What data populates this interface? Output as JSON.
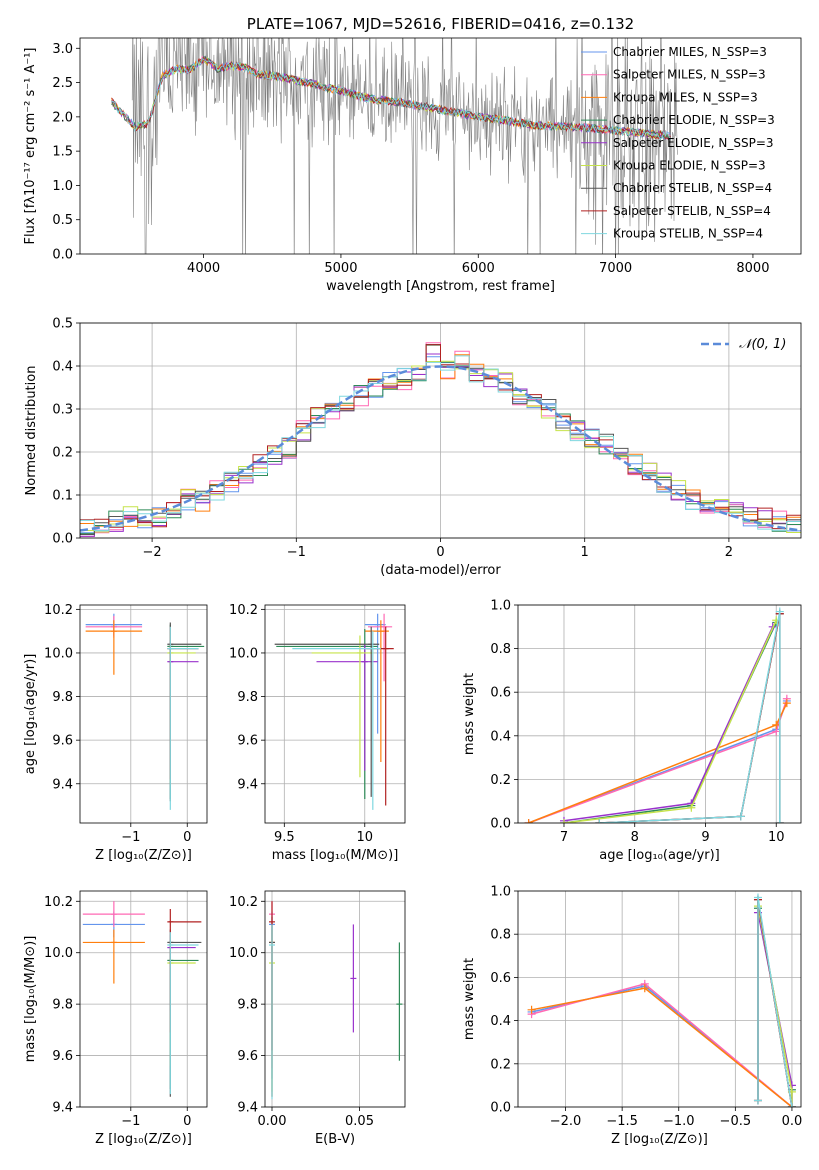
{
  "chart_data": [
    {
      "type": "line",
      "title": "PLATE=1067, MJD=52616, FIBERID=0416, z=0.132",
      "xlabel": "wavelength [Angstrom, rest frame]",
      "ylabel": "Flux [fλ10⁻¹⁷ erg cm⁻² s⁻¹ A⁻¹]",
      "xlim": [
        3100,
        8350
      ],
      "ylim": [
        0,
        3.15
      ],
      "xticks": [
        4000,
        5000,
        6000,
        7000,
        8000
      ],
      "yticks": [
        0.0,
        0.5,
        1.0,
        1.5,
        2.0,
        2.5,
        3.0
      ],
      "grid": false,
      "legend_position": "top-right",
      "legend": [
        {
          "name": "Chabrier MILES, N_SSP=3",
          "color": "#6495ed"
        },
        {
          "name": "Salpeter MILES, N_SSP=3",
          "color": "#ff69b4"
        },
        {
          "name": "Kroupa MILES, N_SSP=3",
          "color": "#ff7f0e"
        },
        {
          "name": "Chabrier ELODIE, N_SSP=3",
          "color": "#2e8b57"
        },
        {
          "name": "Salpeter ELODIE, N_SSP=3",
          "color": "#9932cc"
        },
        {
          "name": "Kroupa ELODIE, N_SSP=3",
          "color": "#c6e34b"
        },
        {
          "name": "Chabrier STELIB, N_SSP=4",
          "color": "#555555"
        },
        {
          "name": "Salpeter STELIB, N_SSP=4",
          "color": "#b22222"
        },
        {
          "name": "Kroupa STELIB, N_SSP=4",
          "color": "#7fd7df"
        }
      ],
      "spectrum_color": "#808080",
      "model_wavelength": [
        3330,
        3500,
        3600,
        3700,
        3800,
        3900,
        4000,
        4100,
        4200,
        4300,
        4400,
        4500,
        4600,
        4700,
        4800,
        4900,
        5000,
        5200,
        5400,
        5600,
        5800,
        6000,
        6200,
        6400,
        6600,
        6800,
        7000,
        7200,
        7400
      ],
      "model_flux": [
        2.22,
        1.85,
        1.9,
        2.6,
        2.7,
        2.68,
        2.85,
        2.7,
        2.75,
        2.72,
        2.62,
        2.6,
        2.57,
        2.52,
        2.48,
        2.42,
        2.38,
        2.27,
        2.22,
        2.15,
        2.08,
        2.0,
        1.95,
        1.88,
        1.86,
        1.84,
        1.8,
        1.76,
        1.72
      ]
    },
    {
      "type": "histogram",
      "xlabel": "(data-model)/error",
      "ylabel": "Normed distribution",
      "xlim": [
        -2.5,
        2.5
      ],
      "ylim": [
        0,
        0.5
      ],
      "xticks": [
        -2,
        -1,
        0,
        1,
        2
      ],
      "yticks": [
        0.0,
        0.1,
        0.2,
        0.3,
        0.4,
        0.5
      ],
      "grid": true,
      "legend_position": "top-right",
      "legend": [
        {
          "name": "𝒩(0, 1)",
          "color": "#5b8bd9"
        }
      ],
      "bin_edges": [
        -2.5,
        -2.4,
        -2.3,
        -2.2,
        -2.1,
        -2.0,
        -1.9,
        -1.8,
        -1.7,
        -1.6,
        -1.5,
        -1.4,
        -1.3,
        -1.2,
        -1.1,
        -1.0,
        -0.9,
        -0.8,
        -0.7,
        -0.6,
        -0.5,
        -0.4,
        -0.3,
        -0.2,
        -0.1,
        0.0,
        0.1,
        0.2,
        0.3,
        0.4,
        0.5,
        0.6,
        0.7,
        0.8,
        0.9,
        1.0,
        1.1,
        1.2,
        1.3,
        1.4,
        1.5,
        1.6,
        1.7,
        1.8,
        1.9,
        2.0,
        2.1,
        2.2,
        2.3,
        2.4,
        2.5
      ],
      "density": [
        0.02,
        0.025,
        0.04,
        0.05,
        0.045,
        0.05,
        0.07,
        0.09,
        0.085,
        0.11,
        0.13,
        0.15,
        0.17,
        0.19,
        0.21,
        0.25,
        0.28,
        0.29,
        0.31,
        0.33,
        0.35,
        0.36,
        0.37,
        0.39,
        0.43,
        0.39,
        0.41,
        0.38,
        0.37,
        0.36,
        0.33,
        0.32,
        0.3,
        0.27,
        0.25,
        0.23,
        0.22,
        0.2,
        0.17,
        0.15,
        0.13,
        0.11,
        0.09,
        0.08,
        0.07,
        0.06,
        0.05,
        0.045,
        0.04,
        0.035
      ],
      "normal_curve": {
        "mean": 0,
        "sigma": 1
      }
    },
    {
      "type": "scatter",
      "panel": "age-vs-Z",
      "xlabel": "Z [log₁₀(Z/Z⊙)]",
      "ylabel": "age  [log₁₀(age/yr)]",
      "xlim": [
        -1.9,
        0.35
      ],
      "ylim": [
        9.22,
        10.22
      ],
      "xticks": [
        -1,
        0
      ],
      "yticks": [
        9.4,
        9.6,
        9.8,
        10.0,
        10.2
      ],
      "grid": true,
      "points": [
        {
          "x": -1.3,
          "y": 10.13,
          "xerr": [
            0.5,
            0.5
          ],
          "yerr": [
            0.05,
            0.05
          ],
          "color": "#6495ed"
        },
        {
          "x": -1.3,
          "y": 10.12,
          "xerr": [
            0.5,
            0.5
          ],
          "yerr": [
            0.05,
            0.05
          ],
          "color": "#ff69b4"
        },
        {
          "x": -1.3,
          "y": 10.1,
          "xerr": [
            0.5,
            0.5
          ],
          "yerr": [
            0.2,
            0.05
          ],
          "color": "#ff7f0e"
        },
        {
          "x": -0.3,
          "y": 10.03,
          "xerr": [
            0.03,
            0.6
          ],
          "yerr": [
            0.7,
            0.1
          ],
          "color": "#2e8b57"
        },
        {
          "x": -0.3,
          "y": 9.96,
          "xerr": [
            0.03,
            0.5
          ],
          "yerr": [
            0.5,
            0.1
          ],
          "color": "#9932cc"
        },
        {
          "x": -0.3,
          "y": 10.0,
          "xerr": [
            0.03,
            0.45
          ],
          "yerr": [
            0.6,
            0.1
          ],
          "color": "#c6e34b"
        },
        {
          "x": -0.3,
          "y": 10.04,
          "xerr": [
            0.03,
            0.55
          ],
          "yerr": [
            0.72,
            0.1
          ],
          "color": "#555555"
        },
        {
          "x": -0.3,
          "y": 10.02,
          "xerr": [
            0.03,
            0.5
          ],
          "yerr": [
            0.6,
            0.1
          ],
          "color": "#b22222"
        },
        {
          "x": -0.3,
          "y": 10.02,
          "xerr": [
            0.03,
            0.5
          ],
          "yerr": [
            0.74,
            0.1
          ],
          "color": "#7fd7df"
        }
      ]
    },
    {
      "type": "scatter",
      "panel": "age-vs-mass",
      "xlabel": "mass [log₁₀(M/M⊙)]",
      "ylabel": "",
      "xlim": [
        9.38,
        10.25
      ],
      "ylim": [
        9.22,
        10.22
      ],
      "xticks": [
        9.5,
        10.0
      ],
      "yticks": [
        9.4,
        9.6,
        9.8,
        10.0,
        10.2
      ],
      "grid": true,
      "points": [
        {
          "x": 10.08,
          "y": 10.13,
          "xerr": [
            0.08,
            0.05
          ],
          "yerr": [
            0.5,
            0.05
          ],
          "color": "#6495ed"
        },
        {
          "x": 10.12,
          "y": 10.12,
          "xerr": [
            0.1,
            0.05
          ],
          "yerr": [
            0.25,
            0.06
          ],
          "color": "#ff69b4"
        },
        {
          "x": 10.1,
          "y": 10.1,
          "xerr": [
            0.1,
            0.05
          ],
          "yerr": [
            0.6,
            0.05
          ],
          "color": "#ff7f0e"
        },
        {
          "x": 10.0,
          "y": 10.03,
          "xerr": [
            0.55,
            0.08
          ],
          "yerr": [
            0.7,
            0.08
          ],
          "color": "#2e8b57"
        },
        {
          "x": 10.0,
          "y": 9.96,
          "xerr": [
            0.3,
            0.08
          ],
          "yerr": [
            0.5,
            0.08
          ],
          "color": "#9932cc"
        },
        {
          "x": 9.97,
          "y": 10.0,
          "xerr": [
            0.3,
            0.08
          ],
          "yerr": [
            0.57,
            0.08
          ],
          "color": "#c6e34b"
        },
        {
          "x": 10.04,
          "y": 10.04,
          "xerr": [
            0.6,
            0.05
          ],
          "yerr": [
            0.7,
            0.08
          ],
          "color": "#555555"
        },
        {
          "x": 10.13,
          "y": 10.02,
          "xerr": [
            0.12,
            0.05
          ],
          "yerr": [
            0.72,
            0.1
          ],
          "color": "#b22222"
        },
        {
          "x": 10.05,
          "y": 10.02,
          "xerr": [
            0.5,
            0.05
          ],
          "yerr": [
            0.74,
            0.08
          ],
          "color": "#7fd7df"
        }
      ]
    },
    {
      "type": "line",
      "panel": "mass-weight-vs-age",
      "xlabel": "age  [log₁₀(age/yr)]",
      "ylabel": "mass weight",
      "xlim": [
        6.35,
        10.35
      ],
      "ylim": [
        0,
        1
      ],
      "xticks": [
        7,
        8,
        9,
        10
      ],
      "yticks": [
        0.0,
        0.2,
        0.4,
        0.6,
        0.8,
        1.0
      ],
      "grid": true,
      "series": [
        {
          "color": "#6495ed",
          "x": [
            6.5,
            10.0,
            10.15
          ],
          "y": [
            0.0,
            0.43,
            0.56
          ]
        },
        {
          "color": "#ff69b4",
          "x": [
            6.5,
            10.0,
            10.15
          ],
          "y": [
            0.0,
            0.42,
            0.57
          ]
        },
        {
          "color": "#ff7f0e",
          "x": [
            6.5,
            10.0,
            10.15
          ],
          "y": [
            0.0,
            0.45,
            0.55
          ]
        },
        {
          "color": "#2e8b57",
          "x": [
            7.0,
            8.8,
            10.0
          ],
          "y": [
            0.0,
            0.08,
            0.92
          ]
        },
        {
          "color": "#9932cc",
          "x": [
            7.0,
            8.8,
            9.95
          ],
          "y": [
            0.01,
            0.09,
            0.9
          ]
        },
        {
          "color": "#c6e34b",
          "x": [
            7.0,
            8.8,
            10.0
          ],
          "y": [
            0.0,
            0.07,
            0.93
          ]
        },
        {
          "color": "#555555",
          "x": [
            7.5,
            9.5,
            10.05,
            10.05
          ],
          "y": [
            0.0,
            0.03,
            0.96,
            0.0
          ]
        },
        {
          "color": "#b22222",
          "x": [
            7.5,
            9.5,
            10.05,
            10.05
          ],
          "y": [
            0.0,
            0.03,
            0.96,
            0.0
          ]
        },
        {
          "color": "#7fd7df",
          "x": [
            7.5,
            9.5,
            10.05,
            10.05
          ],
          "y": [
            0.0,
            0.03,
            0.97,
            0.0
          ]
        }
      ]
    },
    {
      "type": "scatter",
      "panel": "mass-vs-Z",
      "xlabel": "Z [log₁₀(Z/Z⊙)]",
      "ylabel": "mass [log₁₀(M/M⊙)]",
      "xlim": [
        -1.9,
        0.35
      ],
      "ylim": [
        9.4,
        10.24
      ],
      "xticks": [
        -1,
        0
      ],
      "yticks": [
        9.4,
        9.6,
        9.8,
        10.0,
        10.2
      ],
      "grid": true,
      "points": [
        {
          "x": -1.3,
          "y": 10.11,
          "xerr": [
            0.55,
            0.55
          ],
          "yerr": [
            0.05,
            0.05
          ],
          "color": "#6495ed"
        },
        {
          "x": -1.3,
          "y": 10.15,
          "xerr": [
            0.55,
            0.55
          ],
          "yerr": [
            0.05,
            0.05
          ],
          "color": "#ff69b4"
        },
        {
          "x": -1.3,
          "y": 10.04,
          "xerr": [
            0.55,
            0.55
          ],
          "yerr": [
            0.16,
            0.05
          ],
          "color": "#ff7f0e"
        },
        {
          "x": -0.3,
          "y": 9.97,
          "xerr": [
            0.03,
            0.5
          ],
          "yerr": [
            0.5,
            0.08
          ],
          "color": "#2e8b57"
        },
        {
          "x": -0.3,
          "y": 10.02,
          "xerr": [
            0.03,
            0.45
          ],
          "yerr": [
            0.25,
            0.05
          ],
          "color": "#9932cc"
        },
        {
          "x": -0.3,
          "y": 9.96,
          "xerr": [
            0.03,
            0.45
          ],
          "yerr": [
            0.4,
            0.05
          ],
          "color": "#c6e34b"
        },
        {
          "x": -0.3,
          "y": 10.04,
          "xerr": [
            0.03,
            0.55
          ],
          "yerr": [
            0.6,
            0.05
          ],
          "color": "#555555"
        },
        {
          "x": -0.3,
          "y": 10.12,
          "xerr": [
            0.03,
            0.55
          ],
          "yerr": [
            0.43,
            0.05
          ],
          "color": "#b22222"
        },
        {
          "x": -0.3,
          "y": 10.03,
          "xerr": [
            0.03,
            0.5
          ],
          "yerr": [
            0.58,
            0.05
          ],
          "color": "#7fd7df"
        }
      ]
    },
    {
      "type": "scatter",
      "panel": "mass-vs-EBV",
      "xlabel": "E(B-V)",
      "ylabel": "",
      "xlim": [
        -0.004,
        0.076
      ],
      "ylim": [
        9.4,
        10.24
      ],
      "xticks": [
        0.0,
        0.05
      ],
      "yticks": [
        9.4,
        9.6,
        9.8,
        10.0,
        10.2
      ],
      "grid": true,
      "points": [
        {
          "x": 0.0,
          "y": 10.11,
          "yerr": [
            0.6,
            0.05
          ],
          "color": "#6495ed"
        },
        {
          "x": 0.0,
          "y": 10.15,
          "yerr": [
            0.6,
            0.05
          ],
          "color": "#ff69b4"
        },
        {
          "x": 0.0,
          "y": 10.04,
          "yerr": [
            0.6,
            0.05
          ],
          "color": "#ff7f0e"
        },
        {
          "x": 0.0728,
          "y": 9.8,
          "yerr": [
            0.22,
            0.24
          ],
          "color": "#2e8b57"
        },
        {
          "x": 0.0465,
          "y": 9.9,
          "yerr": [
            0.21,
            0.21
          ],
          "color": "#9932cc"
        },
        {
          "x": 0.0,
          "y": 9.96,
          "yerr": [
            0.5,
            0.15
          ],
          "color": "#c6e34b"
        },
        {
          "x": 0.0,
          "y": 10.04,
          "yerr": [
            0.6,
            0.1
          ],
          "color": "#555555"
        },
        {
          "x": 0.0,
          "y": 10.12,
          "yerr": [
            0.5,
            0.08
          ],
          "color": "#b22222"
        },
        {
          "x": 0.0,
          "y": 10.03,
          "yerr": [
            0.6,
            0.08
          ],
          "color": "#7fd7df"
        }
      ]
    },
    {
      "type": "line",
      "panel": "mass-weight-vs-Z",
      "xlabel": "Z [log₁₀(Z/Z⊙)]",
      "ylabel": "mass weight",
      "xlim": [
        -2.42,
        0.08
      ],
      "ylim": [
        0,
        1
      ],
      "xticks": [
        -2.0,
        -1.5,
        -1.0,
        -0.5,
        0.0
      ],
      "yticks": [
        0.0,
        0.2,
        0.4,
        0.6,
        0.8,
        1.0
      ],
      "grid": true,
      "series": [
        {
          "color": "#6495ed",
          "x": [
            -2.3,
            -1.3,
            0.0
          ],
          "y": [
            0.44,
            0.56,
            0.0
          ]
        },
        {
          "color": "#ff69b4",
          "x": [
            -2.3,
            -1.3,
            0.0
          ],
          "y": [
            0.43,
            0.57,
            0.0
          ]
        },
        {
          "color": "#ff7f0e",
          "x": [
            -2.3,
            -1.3,
            0.0
          ],
          "y": [
            0.45,
            0.55,
            0.0
          ]
        },
        {
          "color": "#2e8b57",
          "x": [
            -0.3,
            0.0,
            0.0
          ],
          "y": [
            0.92,
            0.08,
            0.0
          ]
        },
        {
          "color": "#9932cc",
          "x": [
            -0.3,
            0.0,
            0.0
          ],
          "y": [
            0.9,
            0.1,
            0.0
          ]
        },
        {
          "color": "#c6e34b",
          "x": [
            -0.3,
            0.0,
            0.0
          ],
          "y": [
            0.93,
            0.07,
            0.0
          ]
        },
        {
          "color": "#555555",
          "x": [
            -0.3,
            -0.3,
            0.0
          ],
          "y": [
            0.03,
            0.96,
            0.0
          ]
        },
        {
          "color": "#b22222",
          "x": [
            -0.3,
            -0.3,
            0.0
          ],
          "y": [
            0.03,
            0.96,
            0.0
          ]
        },
        {
          "color": "#7fd7df",
          "x": [
            -0.3,
            -0.3,
            0.0
          ],
          "y": [
            0.03,
            0.97,
            0.0
          ]
        }
      ]
    }
  ]
}
